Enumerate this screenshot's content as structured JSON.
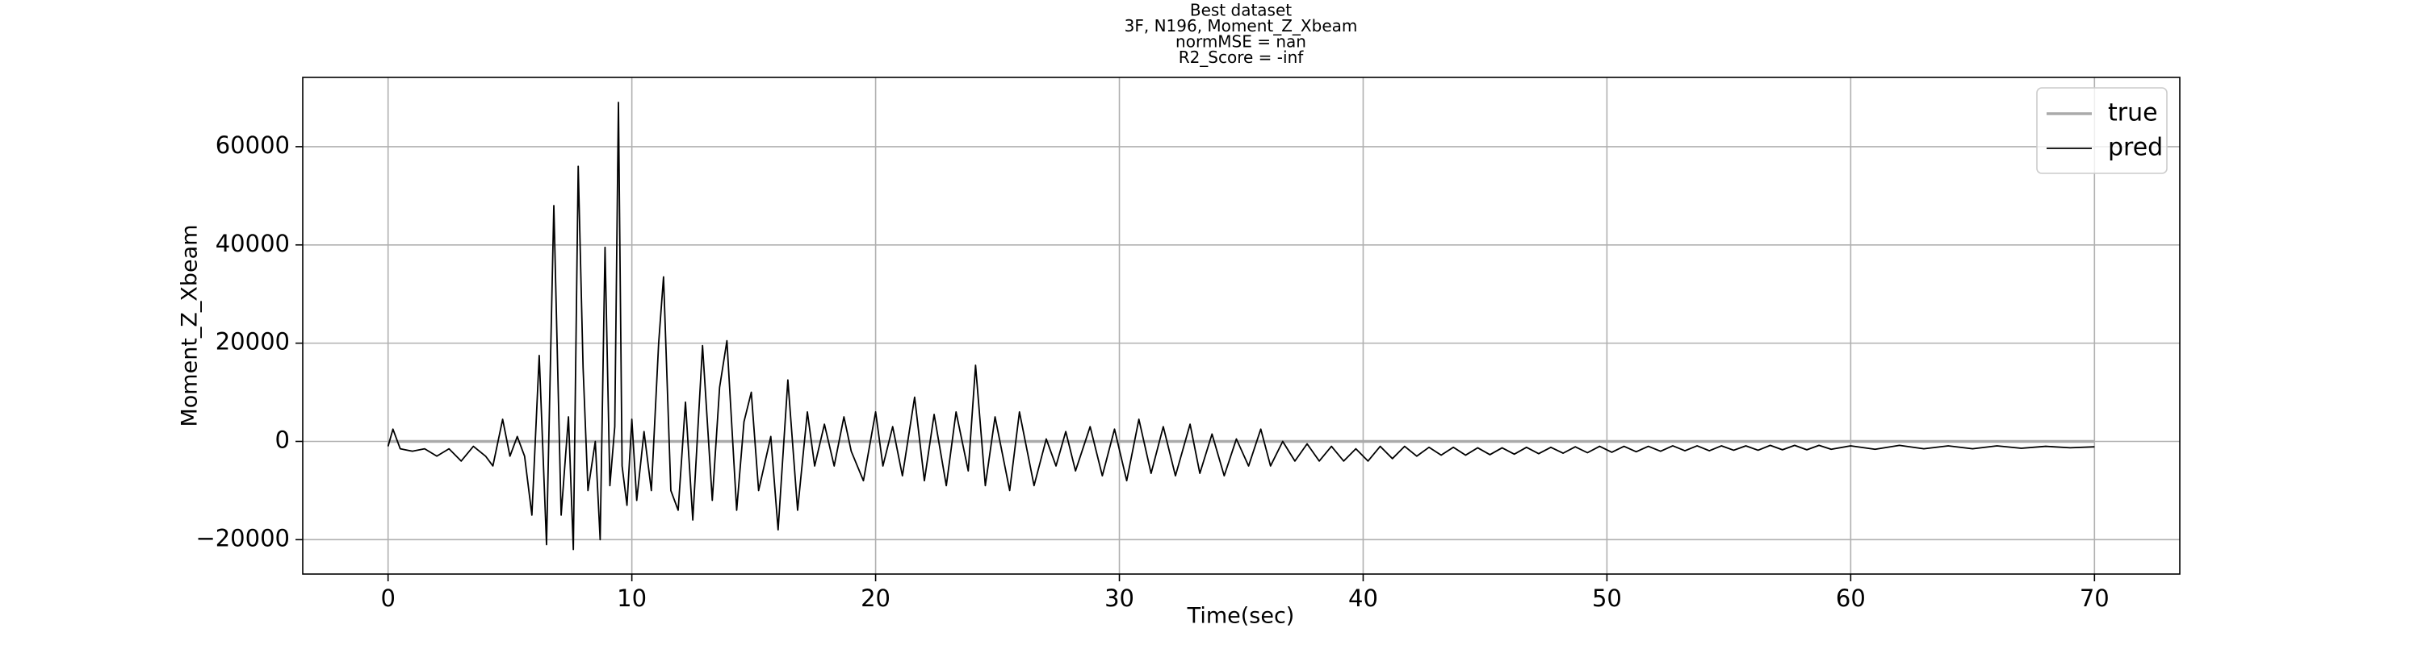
{
  "chart_data": {
    "type": "line",
    "title": [
      "Best dataset",
      "3F, N196, Moment_Z_Xbeam",
      "normMSE = nan",
      "R2_Score = -inf"
    ],
    "xlabel": "Time(sec)",
    "ylabel": "Moment_Z_Xbeam",
    "xlim": [
      -3.5,
      73.5
    ],
    "ylim": [
      -27000,
      74100
    ],
    "xticks": [
      0,
      10,
      20,
      30,
      40,
      50,
      60,
      70
    ],
    "yticks": [
      {
        "value": -20000,
        "label": "−20000"
      },
      0,
      20000,
      40000,
      60000
    ],
    "grid": true,
    "legend": "upper right",
    "series": [
      {
        "name": "true",
        "color": "#aaaaaa",
        "x": [
          0,
          70
        ],
        "values": [
          0,
          0
        ]
      },
      {
        "name": "pred",
        "color": "#000000",
        "x": [
          0,
          0.2,
          0.5,
          1,
          1.5,
          2,
          2.5,
          3,
          3.5,
          4,
          4.3,
          4.7,
          5,
          5.3,
          5.6,
          5.9,
          6.2,
          6.5,
          6.8,
          7.1,
          7.4,
          7.6,
          7.8,
          8.0,
          8.2,
          8.5,
          8.7,
          8.9,
          9.1,
          9.3,
          9.45,
          9.6,
          9.8,
          10.0,
          10.2,
          10.5,
          10.8,
          11.1,
          11.3,
          11.6,
          11.9,
          12.2,
          12.5,
          12.9,
          13.3,
          13.6,
          13.9,
          14.3,
          14.6,
          14.9,
          15.2,
          15.7,
          16.0,
          16.4,
          16.8,
          17.2,
          17.5,
          17.9,
          18.3,
          18.7,
          19.0,
          19.5,
          20.0,
          20.3,
          20.7,
          21.1,
          21.6,
          22.0,
          22.4,
          22.9,
          23.3,
          23.8,
          24.1,
          24.5,
          24.9,
          25.5,
          25.9,
          26.5,
          27.0,
          27.4,
          27.8,
          28.2,
          28.8,
          29.3,
          29.8,
          30.3,
          30.8,
          31.3,
          31.8,
          32.3,
          32.9,
          33.3,
          33.8,
          34.3,
          34.8,
          35.3,
          35.8,
          36.2,
          36.7,
          37.2,
          37.7,
          38.2,
          38.7,
          39.2,
          39.7,
          40.2,
          40.7,
          41.2,
          41.7,
          42.2,
          42.7,
          43.2,
          43.7,
          44.2,
          44.7,
          45.2,
          45.7,
          46.2,
          46.7,
          47.2,
          47.7,
          48.2,
          48.7,
          49.2,
          49.7,
          50.2,
          50.7,
          51.2,
          51.7,
          52.2,
          52.7,
          53.2,
          53.7,
          54.2,
          54.7,
          55.2,
          55.7,
          56.2,
          56.7,
          57.2,
          57.7,
          58.2,
          58.7,
          59.2,
          60,
          61,
          62,
          63,
          64,
          65,
          66,
          67,
          68,
          69,
          70
        ],
        "values": [
          -1000,
          2500,
          -1500,
          -2000,
          -1500,
          -3000,
          -1500,
          -4000,
          -1000,
          -3000,
          -5000,
          4500,
          -3000,
          1000,
          -3000,
          -15000,
          17500,
          -21000,
          48000,
          -15000,
          5000,
          -22000,
          56000,
          15000,
          -10000,
          0,
          -20000,
          39500,
          -9000,
          3000,
          69000,
          -5000,
          -13000,
          4500,
          -12000,
          2000,
          -10000,
          20000,
          33500,
          -10000,
          -14000,
          8000,
          -16000,
          19500,
          -12000,
          11000,
          20500,
          -14000,
          4000,
          10000,
          -10000,
          1000,
          -18000,
          12500,
          -14000,
          6000,
          -5000,
          3500,
          -5000,
          5000,
          -2000,
          -8000,
          6000,
          -5000,
          3000,
          -7000,
          9000,
          -8000,
          5500,
          -9000,
          6000,
          -6000,
          15500,
          -9000,
          5000,
          -10000,
          6000,
          -9000,
          500,
          -5000,
          2000,
          -6000,
          3000,
          -7000,
          2500,
          -8000,
          4500,
          -6500,
          3000,
          -7000,
          3500,
          -6500,
          1500,
          -7000,
          500,
          -5000,
          2500,
          -5000,
          0,
          -4000,
          -500,
          -4000,
          -1000,
          -4000,
          -1500,
          -4000,
          -1000,
          -3500,
          -1000,
          -3000,
          -1200,
          -2800,
          -1200,
          -2800,
          -1300,
          -2700,
          -1300,
          -2600,
          -1200,
          -2500,
          -1200,
          -2400,
          -1100,
          -2300,
          -1000,
          -2200,
          -1000,
          -2100,
          -1000,
          -2000,
          -900,
          -1900,
          -900,
          -1900,
          -900,
          -1800,
          -900,
          -1800,
          -800,
          -1700,
          -800,
          -1700,
          -800,
          -1600,
          -900,
          -1600,
          -800,
          -1500,
          -900,
          -1500,
          -900,
          -1400,
          -1000,
          -1300,
          -1100
        ]
      }
    ]
  }
}
